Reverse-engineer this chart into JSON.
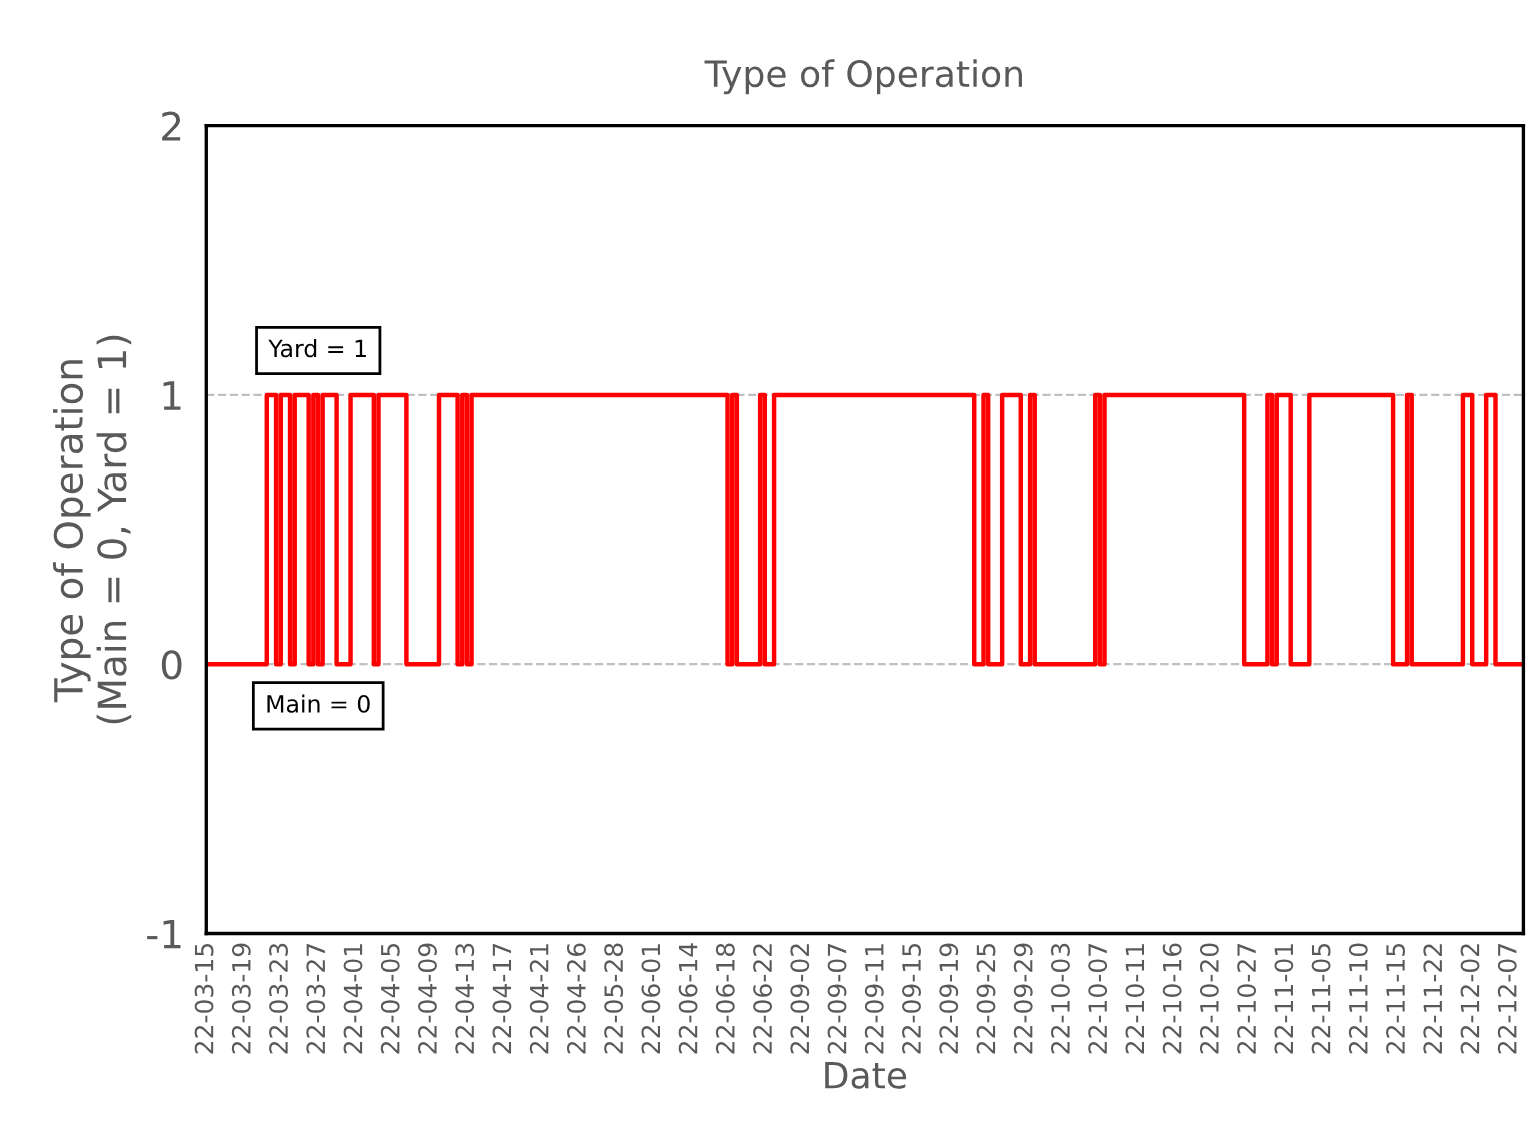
{
  "chart_data": {
    "type": "step",
    "title": "Type of Operation",
    "xlabel": "Date",
    "ylabel": "Type of Operation\n(Main = 0, Yard = 1)",
    "categories": [
      "22-03-15",
      null,
      null,
      null,
      null,
      null,
      null,
      null,
      "22-03-19",
      null,
      null,
      null,
      null,
      null,
      null,
      null,
      "22-03-23",
      null,
      null,
      null,
      null,
      null,
      null,
      null,
      "22-03-27",
      null,
      null,
      null,
      null,
      null,
      null,
      null,
      "22-04-01",
      null,
      null,
      null,
      null,
      null,
      null,
      null,
      "22-04-05",
      null,
      null,
      null,
      null,
      null,
      null,
      null,
      "22-04-09",
      null,
      null,
      null,
      null,
      null,
      null,
      null,
      "22-04-13",
      null,
      null,
      null,
      null,
      null,
      null,
      null,
      "22-04-17",
      null,
      null,
      null,
      null,
      null,
      null,
      null,
      "22-04-21",
      null,
      null,
      null,
      null,
      null,
      null,
      null,
      "22-04-26",
      null,
      null,
      null,
      null,
      null,
      null,
      null,
      "22-05-28",
      null,
      null,
      null,
      null,
      null,
      null,
      null,
      "22-06-01",
      null,
      null,
      null,
      null,
      null,
      null,
      null,
      "22-06-14",
      null,
      null,
      null,
      null,
      null,
      null,
      null,
      "22-06-18",
      null,
      null,
      null,
      null,
      null,
      null,
      null,
      "22-06-22",
      null,
      null,
      null,
      null,
      null,
      null,
      null,
      "22-09-02",
      null,
      null,
      null,
      null,
      null,
      null,
      null,
      "22-09-07",
      null,
      null,
      null,
      null,
      null,
      null,
      null,
      "22-09-11",
      null,
      null,
      null,
      null,
      null,
      null,
      null,
      "22-09-15",
      null,
      null,
      null,
      null,
      null,
      null,
      null,
      "22-09-19",
      null,
      null,
      null,
      null,
      null,
      null,
      null,
      "22-09-25",
      null,
      null,
      null,
      null,
      null,
      null,
      null,
      "22-09-29",
      null,
      null,
      null,
      null,
      null,
      null,
      null,
      "22-10-03",
      null,
      null,
      null,
      null,
      null,
      null,
      null,
      "22-10-07",
      null,
      null,
      null,
      null,
      null,
      null,
      null,
      "22-10-11",
      null,
      null,
      null,
      null,
      null,
      null,
      null,
      "22-10-16",
      null,
      null,
      null,
      null,
      null,
      null,
      null,
      "22-10-20",
      null,
      null,
      null,
      null,
      null,
      null,
      null,
      "22-10-27",
      null,
      null,
      null,
      null,
      null,
      null,
      null,
      "22-11-01",
      null,
      null,
      null,
      null,
      null,
      null,
      null,
      "22-11-05",
      null,
      null,
      null,
      null,
      null,
      null,
      null,
      "22-11-10",
      null,
      null,
      null,
      null,
      null,
      null,
      null,
      "22-11-15",
      null,
      null,
      null,
      null,
      null,
      null,
      null,
      "22-11-22",
      null,
      null,
      null,
      null,
      null,
      null,
      null,
      "22-12-02",
      null,
      null,
      null,
      null,
      null,
      null,
      null,
      "22-12-07",
      null,
      null,
      null
    ],
    "series": [
      {
        "color": "#ff0000",
        "values": [
          0,
          0,
          0,
          0,
          0,
          0,
          0,
          0,
          0,
          0,
          0,
          0,
          0,
          1,
          1,
          0,
          1,
          1,
          0,
          1,
          1,
          1,
          0,
          1,
          0,
          1,
          1,
          1,
          0,
          0,
          0,
          1,
          1,
          1,
          1,
          1,
          0,
          1,
          1,
          1,
          1,
          1,
          1,
          0,
          0,
          0,
          0,
          0,
          0,
          0,
          1,
          1,
          1,
          1,
          0,
          1,
          0,
          1,
          1,
          1,
          1,
          1,
          1,
          1,
          1,
          1,
          1,
          1,
          1,
          1,
          1,
          1,
          1,
          1,
          1,
          1,
          1,
          1,
          1,
          1,
          1,
          1,
          1,
          1,
          1,
          1,
          1,
          1,
          1,
          1,
          1,
          1,
          1,
          1,
          1,
          1,
          1,
          1,
          1,
          1,
          1,
          1,
          1,
          1,
          1,
          1,
          1,
          1,
          1,
          1,
          1,
          1,
          0,
          1,
          0,
          0,
          0,
          0,
          0,
          1,
          0,
          0,
          1,
          1,
          1,
          1,
          1,
          1,
          1,
          1,
          1,
          1,
          1,
          1,
          1,
          1,
          1,
          1,
          1,
          1,
          1,
          1,
          1,
          1,
          1,
          1,
          1,
          1,
          1,
          1,
          1,
          1,
          1,
          1,
          1,
          1,
          1,
          1,
          1,
          1,
          1,
          1,
          1,
          1,
          1,
          0,
          0,
          1,
          0,
          0,
          0,
          1,
          1,
          1,
          1,
          0,
          0,
          1,
          0,
          0,
          0,
          0,
          0,
          0,
          0,
          0,
          0,
          0,
          0,
          0,
          0,
          1,
          0,
          1,
          1,
          1,
          1,
          1,
          1,
          1,
          1,
          1,
          1,
          1,
          1,
          1,
          1,
          1,
          1,
          1,
          1,
          1,
          1,
          1,
          1,
          1,
          1,
          1,
          1,
          1,
          1,
          1,
          1,
          0,
          0,
          0,
          0,
          0,
          1,
          0,
          1,
          1,
          1,
          0,
          0,
          0,
          0,
          1,
          1,
          1,
          1,
          1,
          1,
          1,
          1,
          1,
          1,
          1,
          1,
          1,
          1,
          1,
          1,
          1,
          1,
          0,
          0,
          0,
          1,
          0,
          0,
          0,
          0,
          0,
          0,
          0,
          0,
          0,
          0,
          0,
          1,
          1,
          0,
          0,
          0,
          1,
          1,
          0,
          0,
          0,
          0,
          0,
          0,
          0
        ]
      }
    ],
    "ylim": [
      -1,
      2
    ],
    "yticks": [
      -1,
      0,
      1,
      2
    ],
    "grid": "y",
    "annotations": [
      {
        "text": "Yard = 1",
        "y": 1
      },
      {
        "text": "Main = 0",
        "y": 0
      }
    ]
  }
}
